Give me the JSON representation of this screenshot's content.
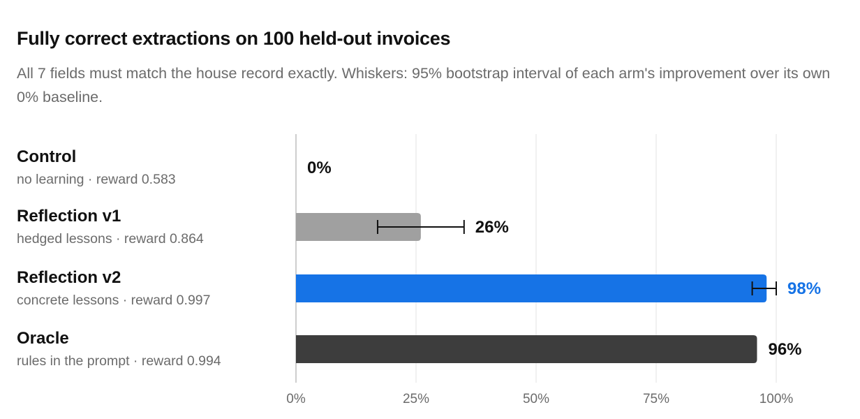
{
  "title": "Fully correct extractions on 100 held-out invoices",
  "subtitle": "All 7 fields must match the house record exactly. Whiskers: 95% bootstrap interval of each arm's improvement over its own 0% baseline.",
  "chart_data": {
    "type": "bar",
    "orientation": "horizontal",
    "title": "Fully correct extractions on 100 held-out invoices",
    "subtitle": "All 7 fields must match the house record exactly. Whiskers: 95% bootstrap interval of each arm's improvement over its own 0% baseline.",
    "xlim": [
      0,
      100
    ],
    "x_ticks": [
      0,
      25,
      50,
      75,
      100
    ],
    "x_tick_labels": [
      "0%",
      "25%",
      "50%",
      "75%",
      "100%"
    ],
    "grid": "vertical",
    "legend": "none",
    "categories": [
      "Control",
      "Reflection v1",
      "Reflection v2",
      "Oracle"
    ],
    "subcategories": [
      "no learning · reward 0.583",
      "hedged lessons · reward 0.864",
      "concrete lessons · reward 0.997",
      "rules in the prompt · reward 0.994"
    ],
    "values": [
      0,
      26,
      98,
      96
    ],
    "value_labels": [
      "0%",
      "26%",
      "98%",
      "96%"
    ],
    "error_low": [
      null,
      17,
      95,
      null
    ],
    "error_high": [
      null,
      35,
      100,
      null
    ],
    "colors": [
      "#a0a0a0",
      "#a0a0a0",
      "#1673e6",
      "#3d3d3d"
    ],
    "label_colors": [
      "#111111",
      "#111111",
      "#1673e6",
      "#111111"
    ]
  }
}
